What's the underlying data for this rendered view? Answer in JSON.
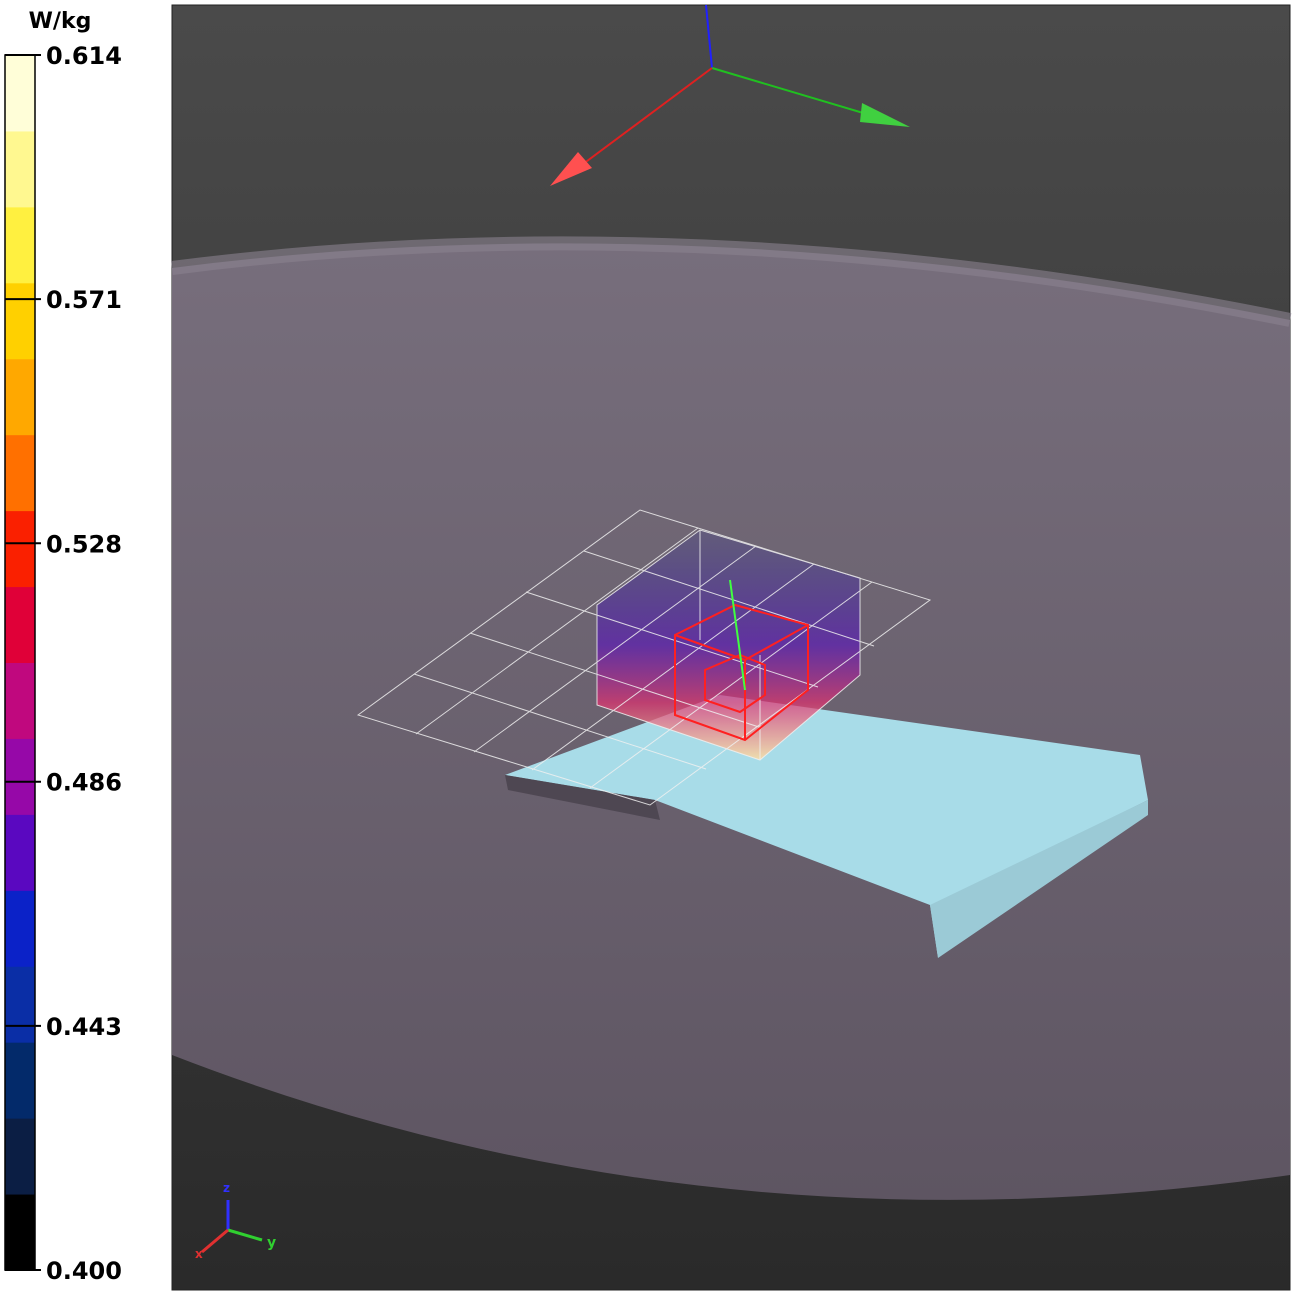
{
  "colorbar": {
    "unit": "W/kg",
    "lim": [
      0.4,
      0.614
    ],
    "ticks": [
      {
        "value": 0.614,
        "label": "0.614"
      },
      {
        "value": 0.571,
        "label": "0.571"
      },
      {
        "value": 0.528,
        "label": "0.528"
      },
      {
        "value": 0.486,
        "label": "0.486"
      },
      {
        "value": 0.443,
        "label": "0.443"
      },
      {
        "value": 0.4,
        "label": "0.400"
      }
    ],
    "colors": [
      "#000000",
      "#0b1e44",
      "#032a6a",
      "#0a2ea6",
      "#0b22c8",
      "#5a08c0",
      "#9608a8",
      "#c0087e",
      "#e00038",
      "#fa2000",
      "#ff7000",
      "#ffa800",
      "#ffd000",
      "#fff040",
      "#fff890",
      "#fffed8"
    ]
  },
  "orientation_axes": {
    "labels": [
      "z",
      "y",
      "x"
    ]
  }
}
